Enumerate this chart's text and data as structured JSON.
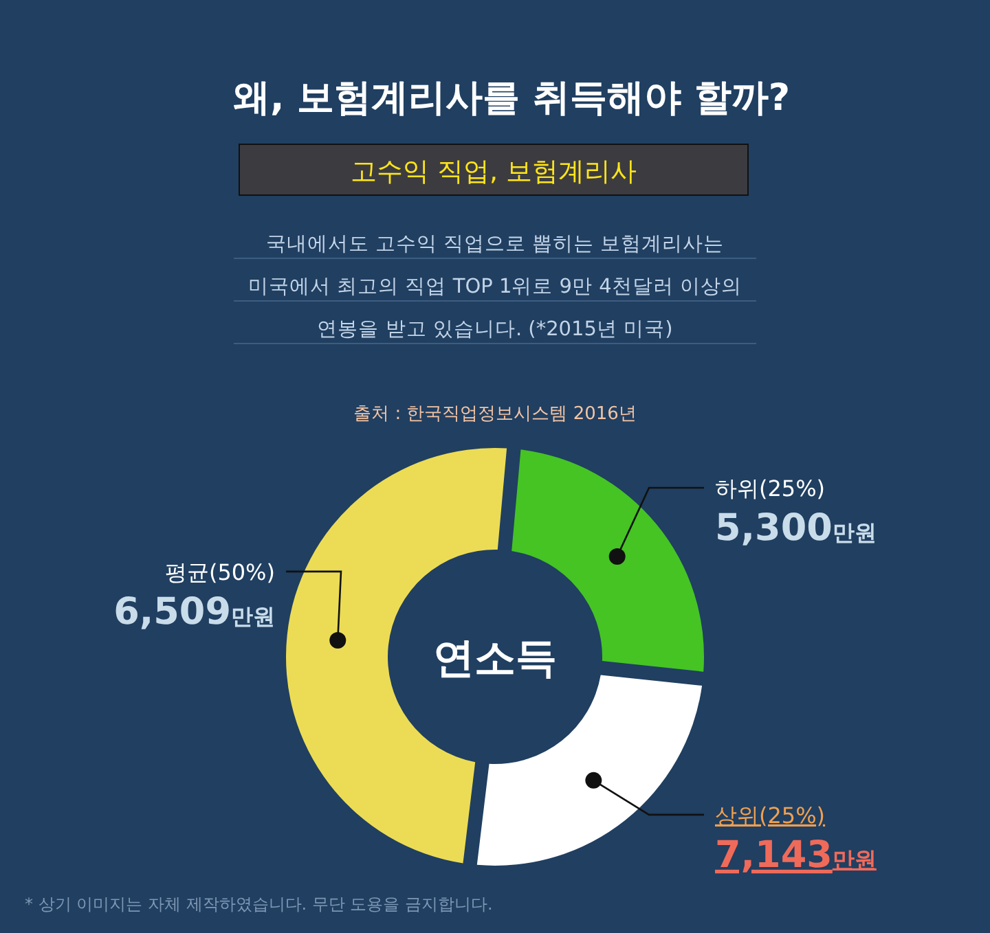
{
  "chart_data": {
    "type": "donut",
    "title": "왜, 보험계리사를 취득해야 할까?",
    "subtitle": "고수익 직업, 보험계리사",
    "categories": [
      "하위(25%)",
      "상위(25%)",
      "평균(50%)"
    ],
    "values": [
      25,
      25,
      50
    ],
    "colors": [
      "#45c424",
      "#ffffff",
      "#ecdc55"
    ],
    "annotations": [
      "국내에서도 고수익 직업으로 뽑히는 보험계리사는",
      "미국에서 최고의 직업 TOP 1위로 9만 4천달러 이상의",
      "연봉을 받고 있습니다. (*2015년 미국)",
      "출처 : 한국직업정보시스템 2016년",
      "연소득",
      "* 상기 이미지는 자체 제작하였습니다. 무단 도용을 금지합니다.",
      {
        "text": "5,300만원",
        "x": "하위(25%)"
      },
      {
        "text": "7,143만원",
        "x": "상위(25%)"
      },
      {
        "text": "6,509만원",
        "x": "평균(50%)"
      }
    ]
  }
}
